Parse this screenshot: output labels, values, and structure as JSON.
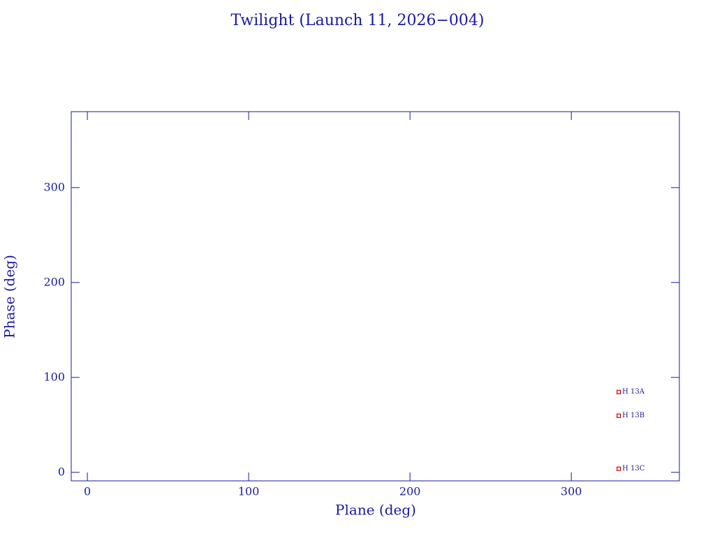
{
  "chart_data": {
    "type": "scatter",
    "title": "Twilight (Launch 11, 2026−004)",
    "x_label": "Plane (deg)",
    "y_label": "Phase (deg)",
    "x": [
      329.4,
      329.4,
      329.4
    ],
    "values": [
      84.6,
      59.6,
      3.7
    ],
    "labels": [
      "H 13A",
      "H 13B",
      "H 13C"
    ],
    "color": "#cc0000",
    "xlim": [
      -10,
      367
    ],
    "ylim": [
      -9,
      380
    ],
    "xticks": [
      0,
      100,
      200,
      300
    ],
    "yticks": [
      0,
      100,
      200,
      300
    ],
    "grid": false
  }
}
